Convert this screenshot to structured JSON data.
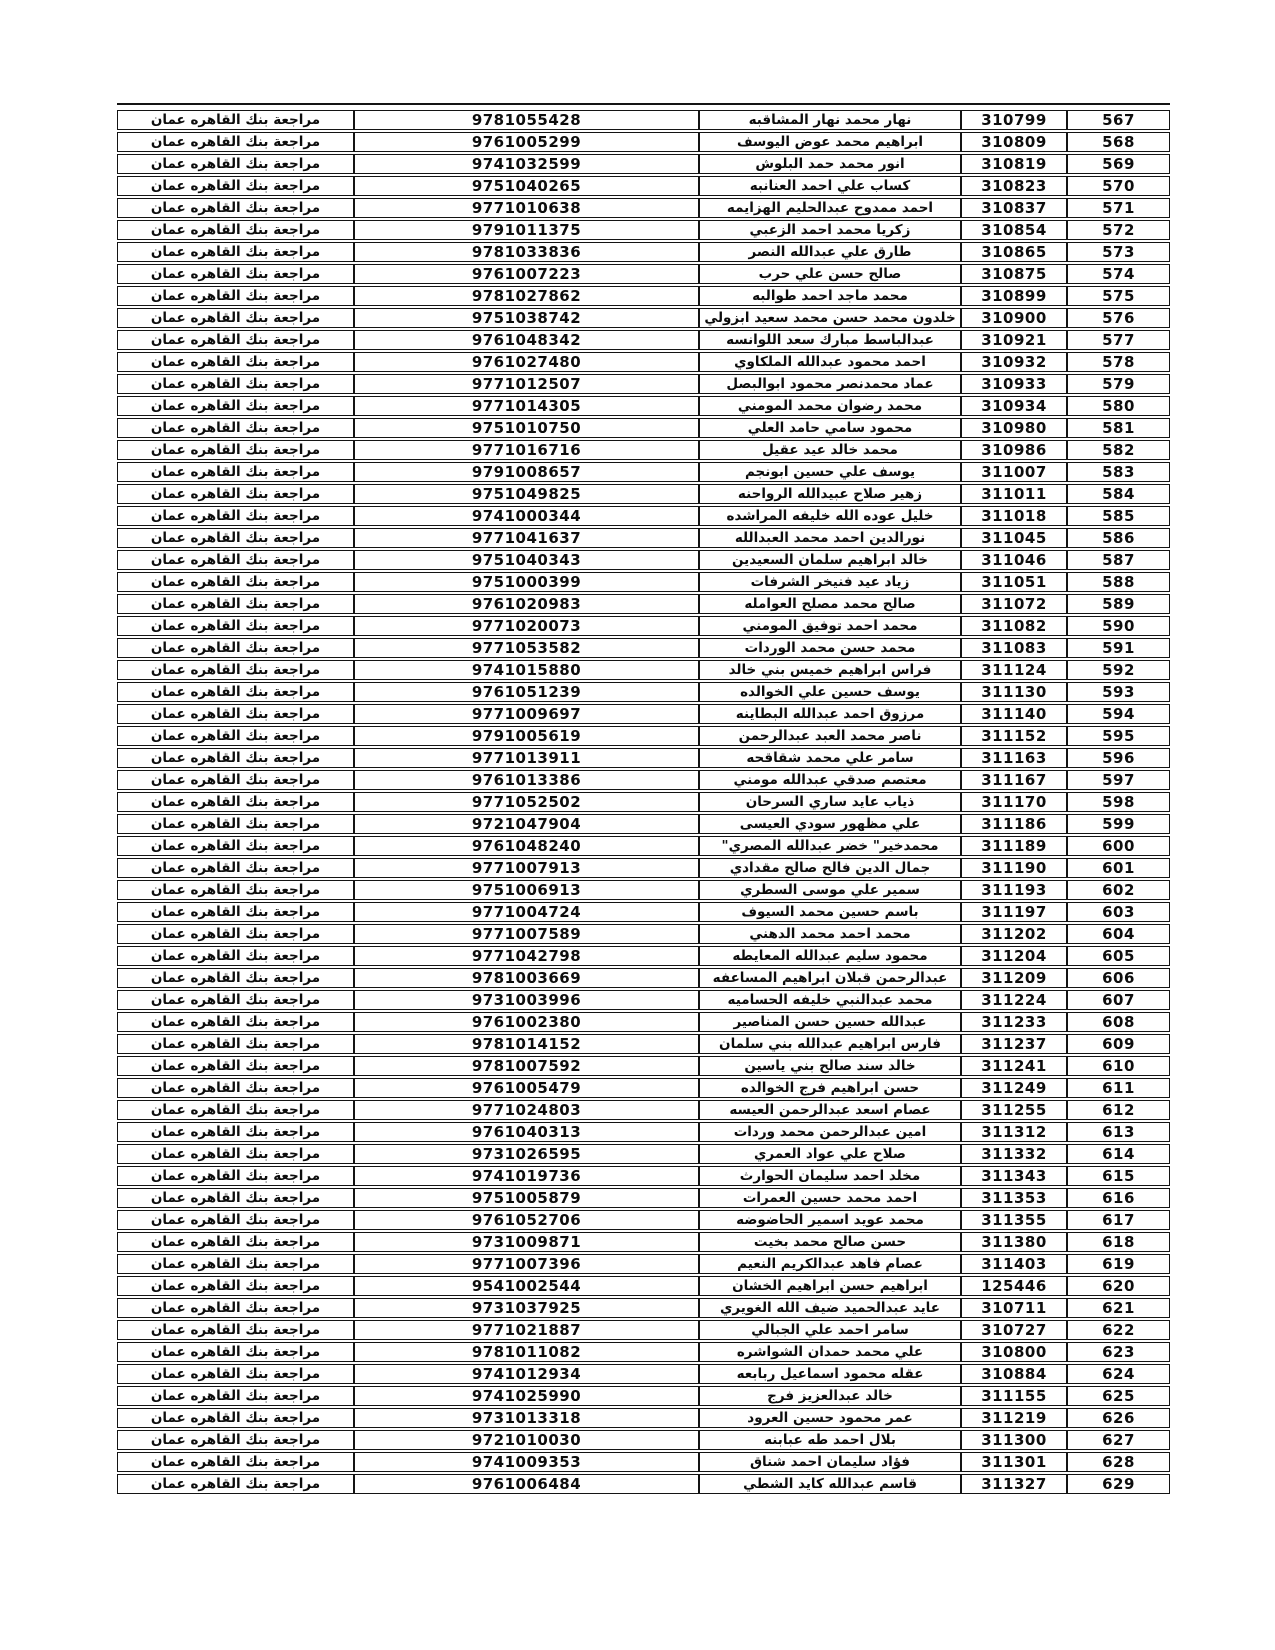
{
  "table": {
    "review_text": "مراجعة بنك القاهره عمان",
    "rows": [
      {
        "serial": "567",
        "id": "310799",
        "name": "نهار محمد نهار المشاقبه",
        "national_number": "9781055428"
      },
      {
        "serial": "568",
        "id": "310809",
        "name": "ابراهيم محمد عوض اليوسف",
        "national_number": "9761005299"
      },
      {
        "serial": "569",
        "id": "310819",
        "name": "انور محمد حمد البلوش",
        "national_number": "9741032599"
      },
      {
        "serial": "570",
        "id": "310823",
        "name": "كساب علي احمد العنانبه",
        "national_number": "9751040265"
      },
      {
        "serial": "571",
        "id": "310837",
        "name": "احمد ممدوح عبدالحليم الهزايمه",
        "national_number": "9771010638"
      },
      {
        "serial": "572",
        "id": "310854",
        "name": "زكريا محمد احمد الزعبي",
        "national_number": "9791011375"
      },
      {
        "serial": "573",
        "id": "310865",
        "name": "طارق علي عبدالله النصر",
        "national_number": "9781033836"
      },
      {
        "serial": "574",
        "id": "310875",
        "name": "صالح حسن علي حرب",
        "national_number": "9761007223"
      },
      {
        "serial": "575",
        "id": "310899",
        "name": "محمد ماجد احمد طوالبه",
        "national_number": "9781027862"
      },
      {
        "serial": "576",
        "id": "310900",
        "name": "خلدون محمد حسن محمد سعيد ابزولي",
        "national_number": "9751038742"
      },
      {
        "serial": "577",
        "id": "310921",
        "name": "عبدالباسط مبارك سعد اللوانسه",
        "national_number": "9761048342"
      },
      {
        "serial": "578",
        "id": "310932",
        "name": "احمد محمود عبدالله الملكاوي",
        "national_number": "9761027480"
      },
      {
        "serial": "579",
        "id": "310933",
        "name": "عماد محمدنصر محمود ابوالبصل",
        "national_number": "9771012507"
      },
      {
        "serial": "580",
        "id": "310934",
        "name": "محمد رضوان محمد المومني",
        "national_number": "9771014305"
      },
      {
        "serial": "581",
        "id": "310980",
        "name": "محمود سامي حامد العلي",
        "national_number": "9751010750"
      },
      {
        "serial": "582",
        "id": "310986",
        "name": "محمد خالد عيد عقيل",
        "national_number": "9771016716"
      },
      {
        "serial": "583",
        "id": "311007",
        "name": "يوسف علي حسين ابونجم",
        "national_number": "9791008657"
      },
      {
        "serial": "584",
        "id": "311011",
        "name": "زهير صلاح عبيدالله الرواحنه",
        "national_number": "9751049825"
      },
      {
        "serial": "585",
        "id": "311018",
        "name": "خليل عوده الله خليفه المراشده",
        "national_number": "9741000344"
      },
      {
        "serial": "586",
        "id": "311045",
        "name": "نورالدين احمد محمد العبدالله",
        "national_number": "9771041637"
      },
      {
        "serial": "587",
        "id": "311046",
        "name": "خالد ابراهيم سلمان السعيدين",
        "national_number": "9751040343"
      },
      {
        "serial": "588",
        "id": "311051",
        "name": "زياد عيد فنيخر الشرفات",
        "national_number": "9751000399"
      },
      {
        "serial": "589",
        "id": "311072",
        "name": "صالح محمد مصلح العوامله",
        "national_number": "9761020983"
      },
      {
        "serial": "590",
        "id": "311082",
        "name": "محمد احمد توفيق المومني",
        "national_number": "9771020073"
      },
      {
        "serial": "591",
        "id": "311083",
        "name": "محمد حسن محمد الوردات",
        "national_number": "9771053582"
      },
      {
        "serial": "592",
        "id": "311124",
        "name": "فراس ابراهيم خميس بني خالد",
        "national_number": "9741015880"
      },
      {
        "serial": "593",
        "id": "311130",
        "name": "يوسف حسين علي الخوالده",
        "national_number": "9761051239"
      },
      {
        "serial": "594",
        "id": "311140",
        "name": "مرزوق احمد عبدالله البطاينه",
        "national_number": "9771009697"
      },
      {
        "serial": "595",
        "id": "311152",
        "name": "ناصر محمد العبد عبدالرحمن",
        "national_number": "9791005619"
      },
      {
        "serial": "596",
        "id": "311163",
        "name": "سامر علي محمد شقاقحه",
        "national_number": "9771013911"
      },
      {
        "serial": "597",
        "id": "311167",
        "name": "معتصم صدقي عبدالله مومني",
        "national_number": "9761013386"
      },
      {
        "serial": "598",
        "id": "311170",
        "name": "ذياب عايد ساري السرحان",
        "national_number": "9771052502"
      },
      {
        "serial": "599",
        "id": "311186",
        "name": "علي مظهور سودي العيسى",
        "national_number": "9721047904"
      },
      {
        "serial": "600",
        "id": "311189",
        "name": "محمدخير\" خضر عبدالله المصري\"",
        "national_number": "9761048240"
      },
      {
        "serial": "601",
        "id": "311190",
        "name": "جمال الدين فالح صالح مقدادي",
        "national_number": "9771007913"
      },
      {
        "serial": "602",
        "id": "311193",
        "name": "سمير علي موسى السطري",
        "national_number": "9751006913"
      },
      {
        "serial": "603",
        "id": "311197",
        "name": "باسم حسين محمد السيوف",
        "national_number": "9771004724"
      },
      {
        "serial": "604",
        "id": "311202",
        "name": "محمد احمد محمد الدهني",
        "national_number": "9771007589"
      },
      {
        "serial": "605",
        "id": "311204",
        "name": "محمود سليم عبدالله المعايطه",
        "national_number": "9771042798"
      },
      {
        "serial": "606",
        "id": "311209",
        "name": "عبدالرحمن قبلان ابراهيم المساعفه",
        "national_number": "9781003669"
      },
      {
        "serial": "607",
        "id": "311224",
        "name": "محمد عبدالنبي خليفه الحساميه",
        "national_number": "9731003996"
      },
      {
        "serial": "608",
        "id": "311233",
        "name": "عبدالله حسين حسن المناصير",
        "national_number": "9761002380"
      },
      {
        "serial": "609",
        "id": "311237",
        "name": "فارس ابراهيم عبدالله بني سلمان",
        "national_number": "9781014152"
      },
      {
        "serial": "610",
        "id": "311241",
        "name": "خالد سند صالح بني ياسين",
        "national_number": "9781007592"
      },
      {
        "serial": "611",
        "id": "311249",
        "name": "حسن ابراهيم فرج الخوالده",
        "national_number": "9761005479"
      },
      {
        "serial": "612",
        "id": "311255",
        "name": "عصام اسعد عبدالرحمن العيسه",
        "national_number": "9771024803"
      },
      {
        "serial": "613",
        "id": "311312",
        "name": "امين عبدالرحمن محمد وردات",
        "national_number": "9761040313"
      },
      {
        "serial": "614",
        "id": "311332",
        "name": "صلاح علي عواد العمري",
        "national_number": "9731026595"
      },
      {
        "serial": "615",
        "id": "311343",
        "name": "مخلد احمد سليمان الحوارث",
        "national_number": "9741019736"
      },
      {
        "serial": "616",
        "id": "311353",
        "name": "احمد محمد حسين العمرات",
        "national_number": "9751005879"
      },
      {
        "serial": "617",
        "id": "311355",
        "name": "محمد عويد اسمير الحاضوضه",
        "national_number": "9761052706"
      },
      {
        "serial": "618",
        "id": "311380",
        "name": "حسن صالح محمد بخيت",
        "national_number": "9731009871"
      },
      {
        "serial": "619",
        "id": "311403",
        "name": "عصام فاهد عبدالكريم النعيم",
        "national_number": "9771007396"
      },
      {
        "serial": "620",
        "id": "125446",
        "name": "ابراهيم حسن ابراهيم الخشان",
        "national_number": "9541002544"
      },
      {
        "serial": "621",
        "id": "310711",
        "name": "عايد عبدالحميد ضيف الله الغويري",
        "national_number": "9731037925"
      },
      {
        "serial": "622",
        "id": "310727",
        "name": "سامر احمد علي الجبالي",
        "national_number": "9771021887"
      },
      {
        "serial": "623",
        "id": "310800",
        "name": "علي محمد حمدان الشواشره",
        "national_number": "9781011082"
      },
      {
        "serial": "624",
        "id": "310884",
        "name": "عقله محمود اسماعيل ربابعه",
        "national_number": "9741012934"
      },
      {
        "serial": "625",
        "id": "311155",
        "name": "خالد عبدالعزيز فرج",
        "national_number": "9741025990"
      },
      {
        "serial": "626",
        "id": "311219",
        "name": "عمر محمود حسين العرود",
        "national_number": "9731013318"
      },
      {
        "serial": "627",
        "id": "311300",
        "name": "بلال احمد طه عبابنه",
        "national_number": "9721010030"
      },
      {
        "serial": "628",
        "id": "311301",
        "name": "فؤاد سليمان احمد شناق",
        "national_number": "9741009353"
      },
      {
        "serial": "629",
        "id": "311327",
        "name": "قاسم عبدالله كايد الشطي",
        "national_number": "9761006484"
      }
    ]
  }
}
